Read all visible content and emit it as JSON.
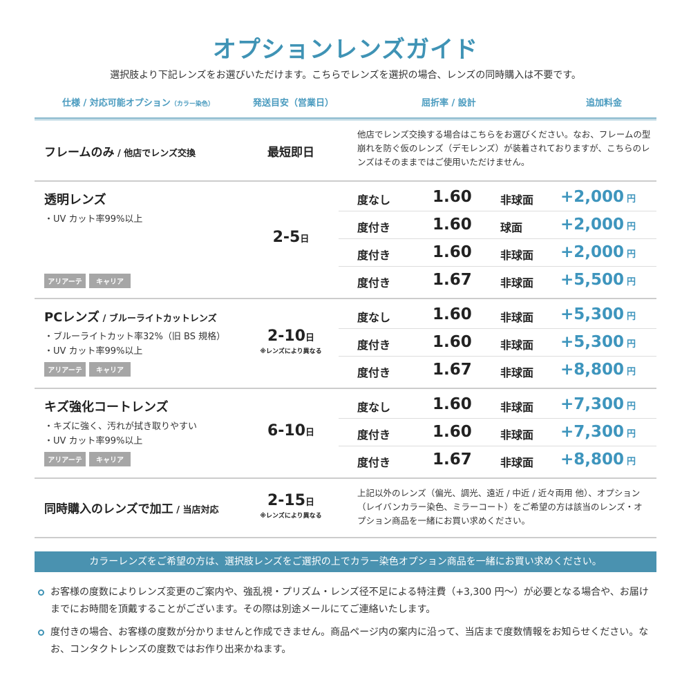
{
  "title": "オプションレンズガイド",
  "subtitle": "選択肢より下記レンズをお選びいただけます。こちらでレンズを選択の場合、レンズの同時購入は不要です。",
  "headers": {
    "spec": "仕様 / 対応可能オプション",
    "spec_small": "（カラー染色）",
    "shipping": "発送目安（営業日）",
    "index": "屈折率 / 設計",
    "price": "追加料金"
  },
  "frame_only": {
    "title": "フレームのみ",
    "sub": " / 他店でレンズ交換",
    "days": "最短即日",
    "note": "他店でレンズ交換する場合はこちらをお選びください。なお、フレームの型崩れを防ぐ仮のレンズ（デモレンズ）が装着されておりますが、こちらのレンズはそのままではご使用いただけません。"
  },
  "sections": [
    {
      "title": "透明レンズ",
      "sub": "",
      "features": [
        "・UV カット率99%以上"
      ],
      "tags": [
        "アリアーテ",
        "キャリア"
      ],
      "days": "2-5",
      "day_unit": "日",
      "days_note": "",
      "rows": [
        {
          "label": "度なし",
          "index": "1.60",
          "design": "非球面",
          "price": "+2,000",
          "unit": "円"
        },
        {
          "label": "度付き",
          "index": "1.60",
          "design": "球面",
          "price": "+2,000",
          "unit": "円"
        },
        {
          "label": "度付き",
          "index": "1.60",
          "design": "非球面",
          "price": "+2,000",
          "unit": "円"
        },
        {
          "label": "度付き",
          "index": "1.67",
          "design": "非球面",
          "price": "+5,500",
          "unit": "円"
        }
      ]
    },
    {
      "title": "PCレンズ",
      "sub": " / ブルーライトカットレンズ",
      "features": [
        "・ブルーライトカット率32%（旧 BS 規格）",
        "・UV カット率99%以上"
      ],
      "tags": [
        "アリアーテ",
        "キャリア"
      ],
      "days": "2-10",
      "day_unit": "日",
      "days_note": "※レンズにより異なる",
      "rows": [
        {
          "label": "度なし",
          "index": "1.60",
          "design": "非球面",
          "price": "+5,300",
          "unit": "円"
        },
        {
          "label": "度付き",
          "index": "1.60",
          "design": "非球面",
          "price": "+5,300",
          "unit": "円"
        },
        {
          "label": "度付き",
          "index": "1.67",
          "design": "非球面",
          "price": "+8,800",
          "unit": "円"
        }
      ]
    },
    {
      "title": "キズ強化コートレンズ",
      "sub": "",
      "features": [
        "・キズに強く、汚れが拭き取りやすい",
        "・UV カット率99%以上"
      ],
      "tags": [
        "アリアーテ",
        "キャリア"
      ],
      "days": "6-10",
      "day_unit": "日",
      "days_note": "",
      "rows": [
        {
          "label": "度なし",
          "index": "1.60",
          "design": "非球面",
          "price": "+7,300",
          "unit": "円"
        },
        {
          "label": "度付き",
          "index": "1.60",
          "design": "非球面",
          "price": "+7,300",
          "unit": "円"
        },
        {
          "label": "度付き",
          "index": "1.67",
          "design": "非球面",
          "price": "+8,800",
          "unit": "円"
        }
      ]
    }
  ],
  "same_time": {
    "title": "同時購入のレンズで加工",
    "sub": " / 当店対応",
    "days": "2-15",
    "day_unit": "日",
    "days_note": "※レンズにより異なる",
    "note": "上記以外のレンズ（偏光、調光、遠近 / 中近 / 近々両用 他）、オプション（レイバンカラー染色、ミラーコート）をご希望の方は該当のレンズ・オプション商品を一緒にお買い求めください。"
  },
  "banner": "カラーレンズをご希望の方は、選択肢レンズをご選択の上でカラー染色オプション商品を一緒にお買い求めください。",
  "notes": [
    "お客様の度数によりレンズ変更のご案内や、強乱視・プリズム・レンズ径不足による特注費（+3,300 円〜）が必要となる場合や、お届けまでにお時間を頂戴することがございます。その際は別途メールにてご連絡いたします。",
    "度付きの場合、お客様の度数が分かりませんと作成できません。商品ページ内の案内に沿って、当店まで度数情報をお知らせください。なお、コンタクトレンズの度数ではお作り出来かねます。"
  ],
  "colors": {
    "accent": "#3f93b5",
    "price": "#3e95bd",
    "banner": "#4a92b0",
    "tag": "#a6a6a6"
  }
}
